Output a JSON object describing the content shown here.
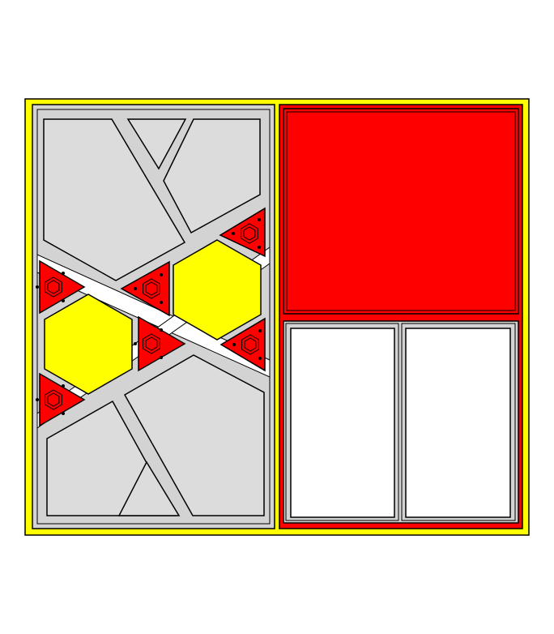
{
  "colors": {
    "background": "#ffffff",
    "frame": "#ffff00",
    "outline": "#000000",
    "grey_panel": "#dcdcdc",
    "light_grey": "#d3d3d3",
    "red": "#ff0000",
    "hexagon": "#ffff00",
    "white_panel": "#ffffff"
  },
  "shapes": {
    "left_panel": "light-grey",
    "right_panel": "red",
    "big_hexagons": 2,
    "small_hexagons": 6,
    "pentagon_tiles": 4,
    "triangle_tiles": 2,
    "white_rectangles": 2
  }
}
